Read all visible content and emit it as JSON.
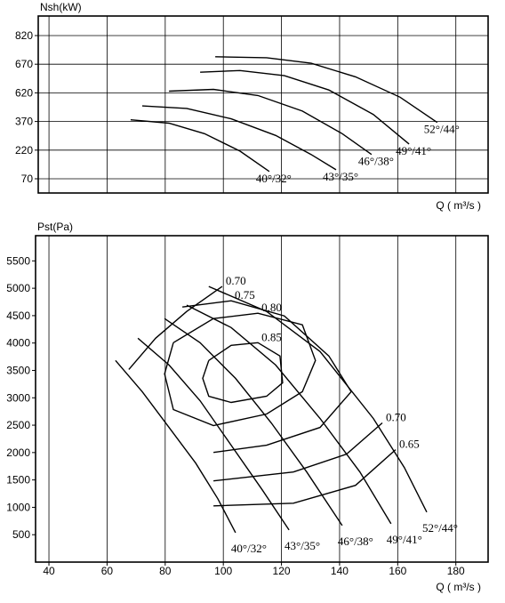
{
  "chart_data": [
    {
      "type": "line",
      "y_label": "Nsh(kW)",
      "x_label": "Q ( m³/s )",
      "xlim": [
        36.3,
        191.1
      ],
      "ylim": [
        -5,
        926
      ],
      "yscale": "even-ticks",
      "yticks": [
        70,
        220,
        370,
        620,
        670,
        820
      ],
      "x_gridlines": [
        40,
        60,
        80,
        100,
        120,
        140,
        160,
        180
      ],
      "grid": "both",
      "color": "#000000",
      "series": [
        {
          "name": "40°/32°",
          "x": [
            68.1,
            81.3,
            93.5,
            105.7,
            115.8
          ],
          "values": [
            385,
            361,
            306,
            215,
            108
          ]
        },
        {
          "name": "43°/35°",
          "x": [
            72.1,
            87.4,
            102.7,
            118.0,
            130.2,
            138.8
          ],
          "values": [
            506,
            484,
            393,
            297,
            197,
            117
          ]
        },
        {
          "name": "46°/38°",
          "x": [
            81.3,
            96.6,
            111.9,
            127.2,
            140.9,
            151.0
          ],
          "values": [
            623,
            626,
            597,
            461,
            306,
            197
          ]
        },
        {
          "name": "49°/41°",
          "x": [
            92.0,
            105.7,
            121.0,
            136.3,
            151.6,
            163.9
          ],
          "values": [
            656,
            659,
            650,
            625,
            431,
            252
          ]
        },
        {
          "name": "52°/44°",
          "x": [
            97.2,
            114.9,
            130.2,
            145.5,
            160.8,
            173.6
          ],
          "values": [
            709,
            704,
            675,
            648,
            582,
            365
          ]
        }
      ]
    },
    {
      "type": "line",
      "y_label": "Pst(Pa)",
      "x_label": "Q ( m³/s )",
      "xlim": [
        35.4,
        191.1
      ],
      "ylim": [
        0,
        5960
      ],
      "xticks": [
        40,
        60,
        80,
        100,
        120,
        140,
        160,
        180
      ],
      "yticks": [
        500,
        1000,
        1500,
        2000,
        2500,
        3000,
        3500,
        4000,
        4500,
        5000,
        5500
      ],
      "grid": "x",
      "color": "#000000",
      "series": [
        {
          "name": "40°/32°",
          "x": [
            62.9,
            72.1,
            81.3,
            90.5,
            98.1,
            104.2
          ],
          "values": [
            3681,
            3111,
            2459,
            1808,
            1156,
            537
          ]
        },
        {
          "name": "43°/35°",
          "x": [
            70.6,
            81.3,
            92.0,
            102.7,
            113.4,
            122.6
          ],
          "values": [
            4088,
            3599,
            2948,
            2134,
            1319,
            586
          ]
        },
        {
          "name": "46°/38°",
          "x": [
            79.8,
            92.0,
            104.2,
            116.5,
            128.7,
            140.9
          ],
          "values": [
            4446,
            4007,
            3355,
            2541,
            1645,
            668
          ]
        },
        {
          "name": "49°/41°",
          "x": [
            87.4,
            102.7,
            118.0,
            133.3,
            147.0,
            157.7
          ],
          "values": [
            4691,
            4283,
            3599,
            2622,
            1645,
            700
          ]
        },
        {
          "name": "52°/44°",
          "x": [
            95.0,
            114.9,
            133.3,
            151.6,
            162.3,
            170.0
          ],
          "values": [
            5033,
            4577,
            3844,
            2622,
            1726,
            912
          ]
        }
      ],
      "contours": [
        {
          "name": "0.85",
          "x": [
            95.0,
            102.7,
            111.9,
            119.5,
            120.4,
            114.9,
            102.7,
            95.0,
            92.9,
            95.0
          ],
          "values": [
            3681,
            3958,
            4007,
            3762,
            3274,
            3029,
            2915,
            3029,
            3355,
            3681
          ]
        },
        {
          "name": "0.80",
          "x": [
            82.8,
            96.6,
            111.9,
            127.2,
            131.7,
            127.2,
            114.9,
            96.6,
            82.8,
            79.8,
            82.8
          ],
          "values": [
            4007,
            4446,
            4544,
            4332,
            3681,
            3111,
            2704,
            2492,
            2785,
            3437,
            4007
          ]
        },
        {
          "name": "0.75",
          "x": [
            85.9,
            102.7,
            121.0,
            136.3,
            144.0,
            133.3,
            114.9,
            96.6
          ],
          "values": [
            4658,
            4772,
            4495,
            3762,
            3111,
            2459,
            2134,
            2003
          ]
        },
        {
          "name": "0.70",
          "x": [
            67.5,
            76.7,
            87.4,
            99.6,
            null,
            154.7,
            142.4,
            124.1,
            96.6
          ],
          "values": [
            3518,
            4088,
            4577,
            5033,
            null,
            2541,
            1971,
            1645,
            1482
          ]
        },
        {
          "name": "0.65",
          "x": [
            159.3,
            145.5,
            124.1,
            96.6
          ],
          "values": [
            2052,
            1401,
            1075,
            1026
          ]
        }
      ]
    }
  ]
}
